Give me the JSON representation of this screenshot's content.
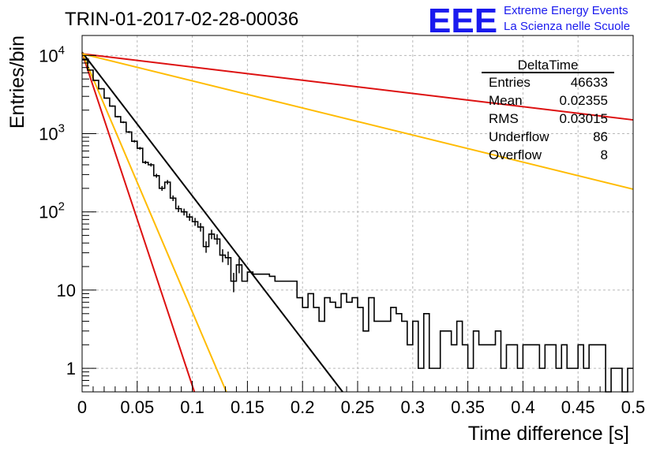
{
  "chart_data": {
    "type": "histogram",
    "title": "TRIN-01-2017-02-28-00036",
    "xlabel": "Time difference [s]",
    "ylabel": "Entries/bin",
    "xlim": [
      0,
      0.5
    ],
    "ylim": [
      0.5,
      18000
    ],
    "yscale": "log",
    "grid": true,
    "x_ticks": [
      "0",
      "0.05",
      "0.1",
      "0.15",
      "0.2",
      "0.25",
      "0.3",
      "0.35",
      "0.4",
      "0.45",
      "0.5"
    ],
    "y_ticks": [
      {
        "value": 1,
        "base": "1",
        "exp": ""
      },
      {
        "value": 10,
        "base": "10",
        "exp": ""
      },
      {
        "value": 100,
        "base": "10",
        "exp": "2"
      },
      {
        "value": 1000,
        "base": "10",
        "exp": "3"
      },
      {
        "value": 10000,
        "base": "10",
        "exp": "4"
      }
    ],
    "stats": {
      "name": "DeltaTime",
      "placement": "top-right",
      "rows": [
        {
          "label": "Entries",
          "value": "46633"
        },
        {
          "label": "Mean",
          "value": "0.02355"
        },
        {
          "label": "RMS",
          "value": "0.03015"
        },
        {
          "label": "Underflow",
          "value": "86"
        },
        {
          "label": "Overflow",
          "value": "8"
        }
      ]
    },
    "histogram": {
      "bin_width": 0.005,
      "color": "#000000",
      "counts": [
        8800,
        6500,
        4800,
        3750,
        2850,
        2250,
        1650,
        1400,
        1050,
        800,
        650,
        430,
        400,
        290,
        200,
        240,
        150,
        110,
        100,
        86,
        75,
        64,
        36,
        52,
        45,
        28,
        26,
        13,
        21,
        13,
        17,
        16,
        16,
        16,
        15,
        13,
        13,
        13,
        13,
        8,
        6,
        9,
        6,
        4,
        8,
        7,
        6,
        9,
        7,
        8,
        6,
        3,
        8,
        4,
        4,
        4,
        6,
        5,
        4,
        2,
        4,
        1,
        5,
        1,
        1,
        3,
        3,
        2,
        4,
        2,
        1,
        3,
        2,
        2,
        2,
        3,
        1,
        2,
        2,
        1,
        2,
        2,
        2,
        1,
        2,
        2,
        1,
        2,
        1,
        1,
        2,
        1,
        2,
        2,
        2,
        0.5,
        1,
        1,
        0.5,
        1
      ]
    },
    "fits": [
      {
        "color": "#000000",
        "A": 11000,
        "x_at_1": 0.22
      },
      {
        "color": "#dd1111",
        "A": 10800,
        "x_at_1": 0.0948
      },
      {
        "color": "#ffbb00",
        "A": 10800,
        "x_at_1": 0.1218
      },
      {
        "color": "#dd1111",
        "A": 10500,
        "y_end": 1500
      },
      {
        "color": "#ffbb00",
        "A": 10500,
        "y_end": 195
      }
    ]
  },
  "logo": {
    "text": "EEE",
    "line1": "Extreme Energy Events",
    "line2": "La Scienza nelle Scuole",
    "color": "#1a1aee"
  }
}
